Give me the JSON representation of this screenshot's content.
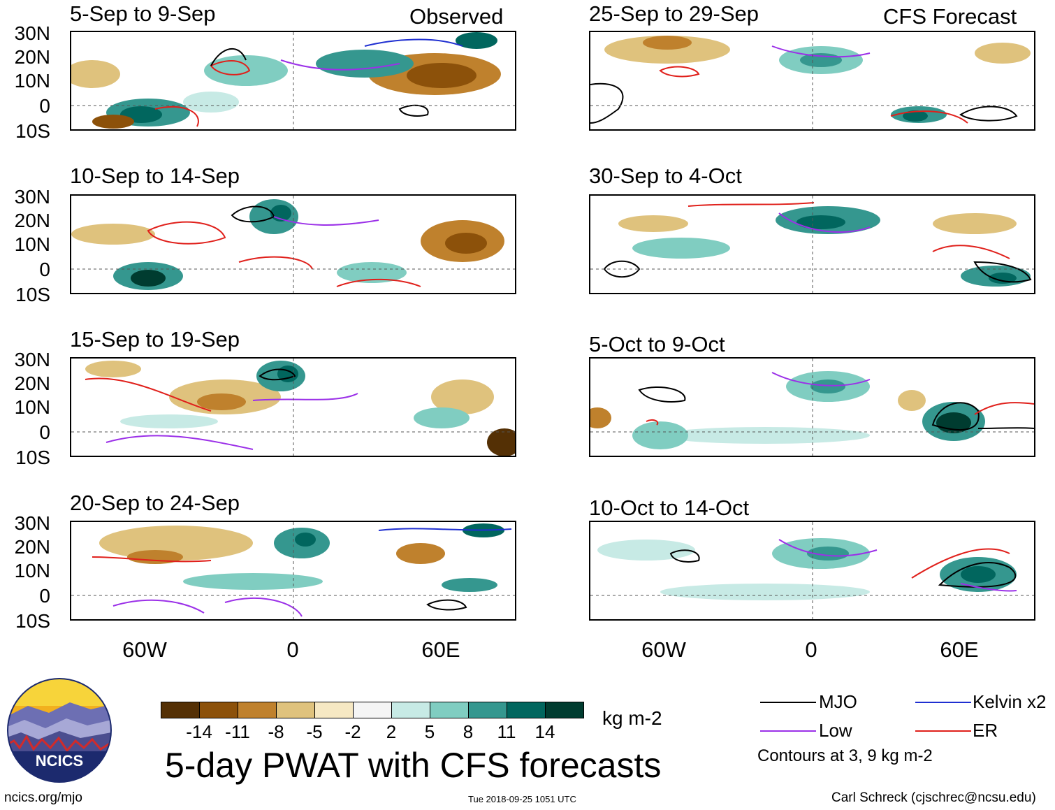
{
  "left_column_label": "Observed",
  "right_column_label": "CFS Forecast",
  "panels": [
    {
      "title": "5-Sep to 9-Sep"
    },
    {
      "title": "10-Sep to 14-Sep"
    },
    {
      "title": "15-Sep to 19-Sep"
    },
    {
      "title": "20-Sep to 24-Sep"
    },
    {
      "title": "25-Sep to 29-Sep"
    },
    {
      "title": "30-Sep to 4-Oct"
    },
    {
      "title": "5-Oct to 9-Oct"
    },
    {
      "title": "10-Oct to 14-Oct"
    }
  ],
  "lat_labels": [
    "30N",
    "20N",
    "10N",
    "0",
    "10S"
  ],
  "lon_labels": [
    "60W",
    "0",
    "60E"
  ],
  "colorbar": {
    "ticks": [
      "-14",
      "-11",
      "-8",
      "-5",
      "-2",
      "2",
      "5",
      "8",
      "11",
      "14"
    ],
    "colors": [
      "#543005",
      "#8c510a",
      "#bf812d",
      "#dfc27d",
      "#f6e8c3",
      "#f5f5f5",
      "#c7eae5",
      "#80cdc1",
      "#35978f",
      "#01665e",
      "#003c30"
    ],
    "units": "kg m-2"
  },
  "title": "5-day PWAT with CFS forecasts",
  "legend": {
    "items": [
      {
        "label": "MJO",
        "color": "#000000"
      },
      {
        "label": "Kelvin x2",
        "color": "#1f2fd1"
      },
      {
        "label": "Low",
        "color": "#9b30e8"
      },
      {
        "label": "ER",
        "color": "#e0201b"
      }
    ],
    "note": "Contours at 3, 9 kg m-2"
  },
  "logo_text": "NCICS",
  "footer": {
    "left": "ncics.org/mjo",
    "center": "Tue 2018-09-25 1051 UTC",
    "right": "Carl Schreck (cjschrec@ncsu.edu)"
  }
}
